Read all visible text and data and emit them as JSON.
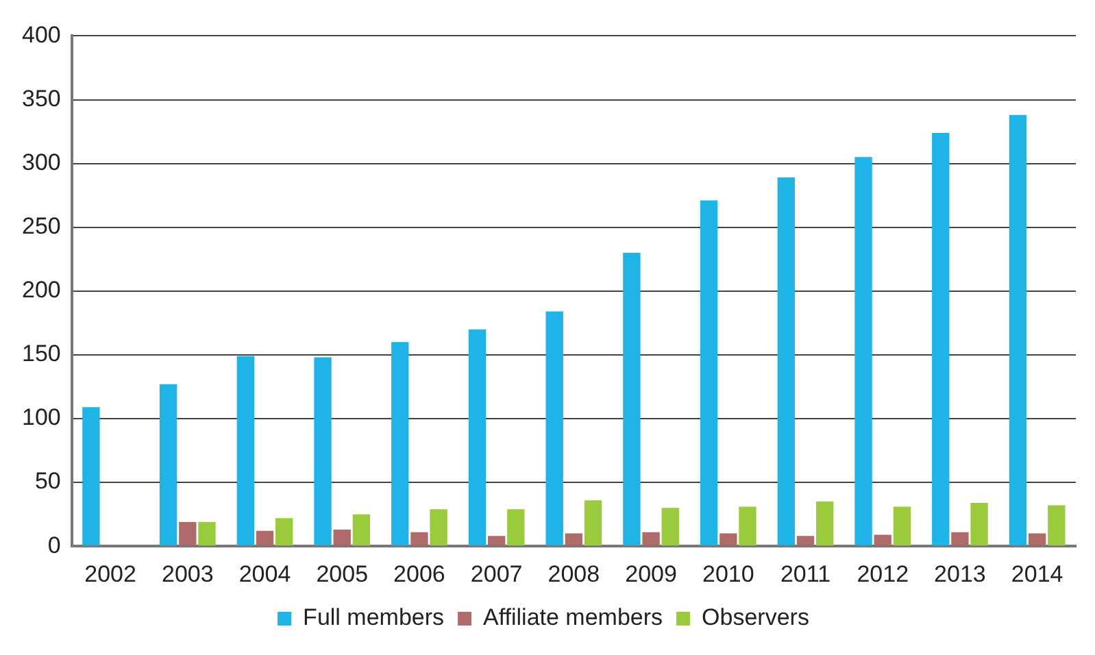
{
  "chart_data": {
    "type": "bar",
    "categories": [
      "2002",
      "2003",
      "2004",
      "2005",
      "2006",
      "2007",
      "2008",
      "2009",
      "2010",
      "2011",
      "2012",
      "2013",
      "2014"
    ],
    "series": [
      {
        "name": "Full members",
        "color": "#1fb4e8",
        "values": [
          109,
          127,
          149,
          148,
          160,
          170,
          184,
          230,
          271,
          289,
          305,
          324,
          338
        ]
      },
      {
        "name": "Affiliate members",
        "color": "#b06a6a",
        "values": [
          null,
          19,
          12,
          13,
          11,
          8,
          10,
          11,
          10,
          8,
          9,
          11,
          10
        ]
      },
      {
        "name": "Observers",
        "color": "#9acb3c",
        "values": [
          null,
          19,
          22,
          25,
          29,
          29,
          36,
          30,
          31,
          35,
          31,
          34,
          32
        ]
      }
    ],
    "ylim": [
      0,
      400
    ],
    "yticks": [
      0,
      50,
      100,
      150,
      200,
      250,
      300,
      350,
      400
    ],
    "grid": "y",
    "legend": "bottom"
  }
}
